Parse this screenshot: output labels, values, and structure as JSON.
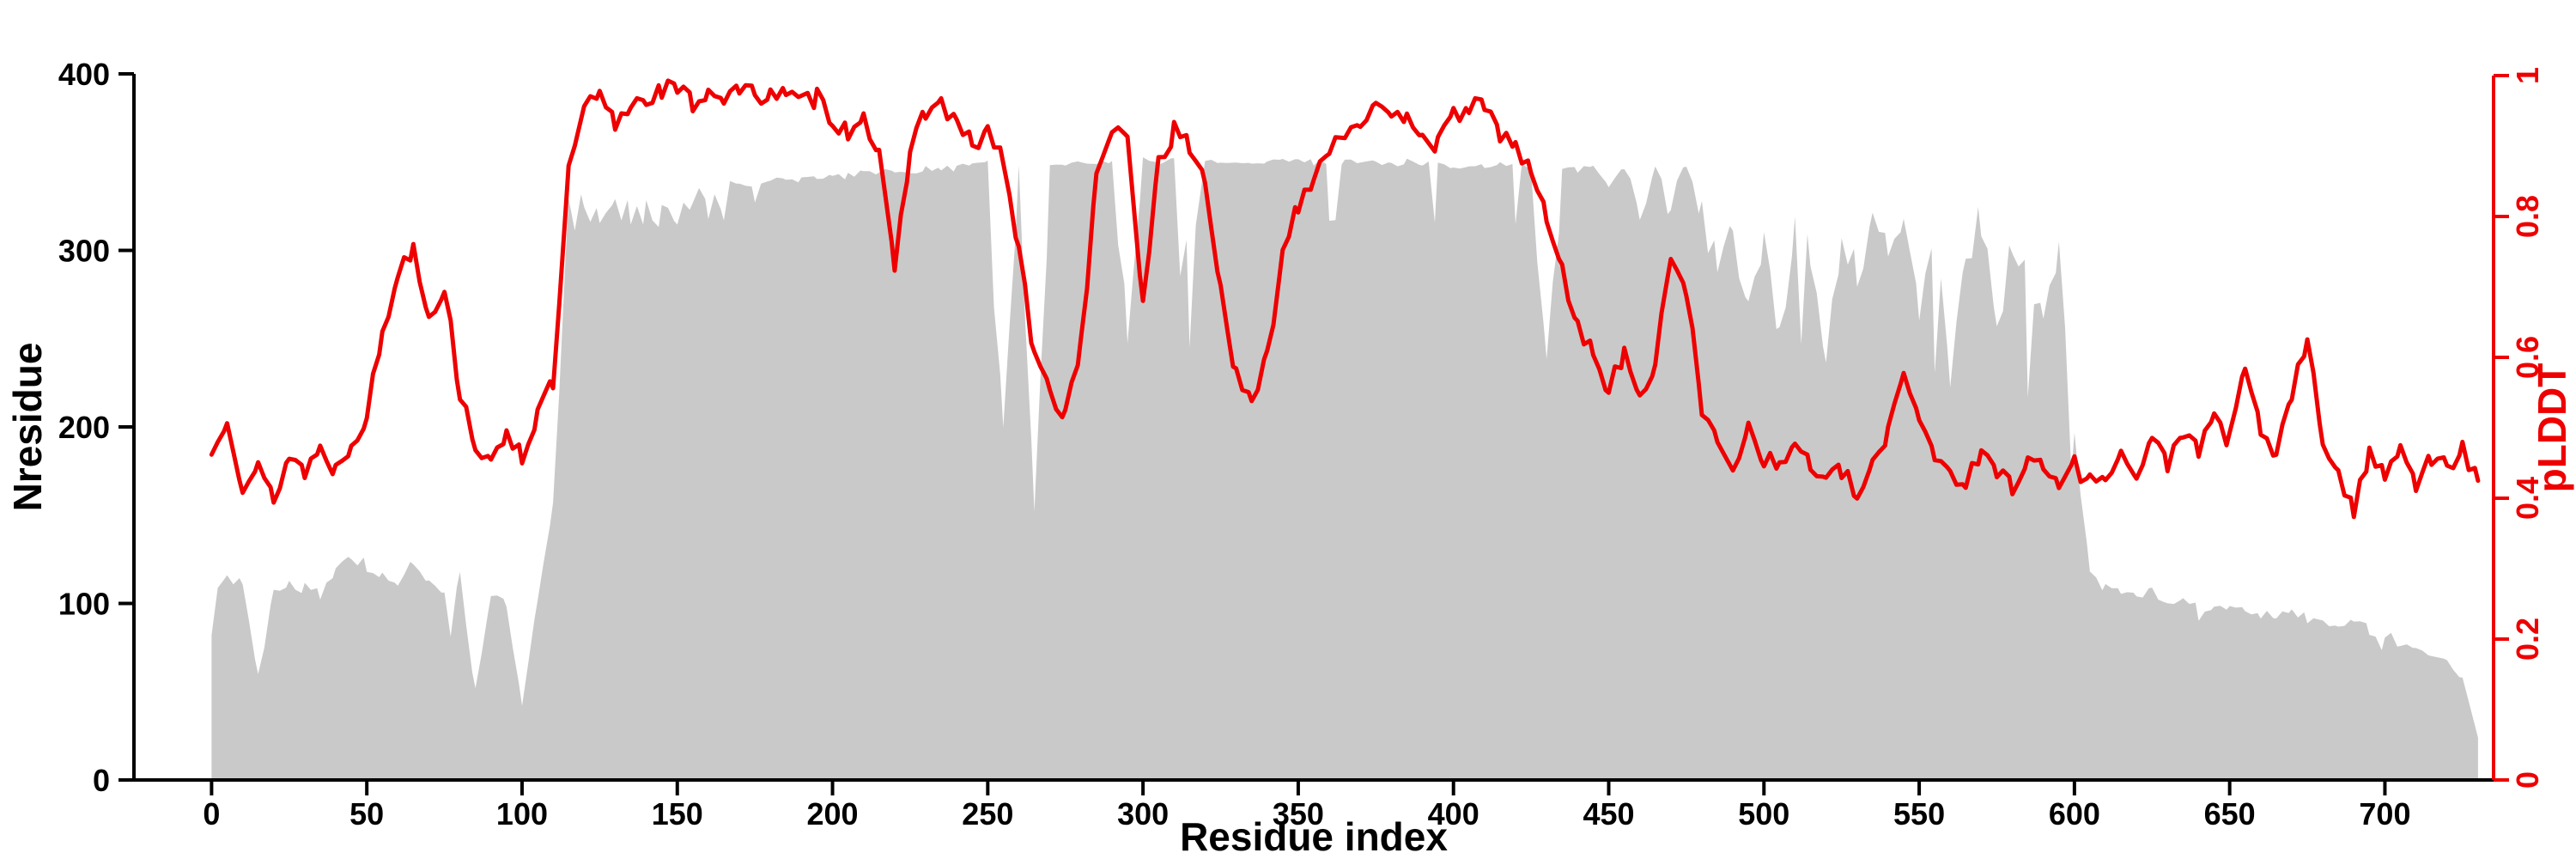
{
  "chart_data": {
    "type": "area",
    "description": "Dual-axis plot: gray area (Nresidue, left axis) and red line (pLDDT, right axis) versus residue index",
    "title": "",
    "xlabel": "Residue index",
    "ylabel_left": "Nresidue",
    "ylabel_right": "pLDDT",
    "x_range": [
      -25,
      735
    ],
    "y_left_range": [
      0,
      400
    ],
    "y_right_range": [
      0,
      1
    ],
    "grid": false,
    "legend": "none",
    "xticks": [
      0,
      50,
      100,
      150,
      200,
      250,
      300,
      350,
      400,
      450,
      500,
      550,
      600,
      650,
      700
    ],
    "yticks_left": [
      0,
      100,
      200,
      300,
      400
    ],
    "yticks_right": [
      0,
      0.2,
      0.4,
      0.6,
      0.8,
      1
    ],
    "colors": {
      "area": "#c9c9c9",
      "line": "#ee0000",
      "axis_left": "#000000",
      "axis_bottom": "#000000",
      "axis_right": "#ee0000",
      "background": "#ffffff"
    },
    "x": [
      0,
      5,
      10,
      15,
      20,
      25,
      30,
      35,
      40,
      45,
      50,
      55,
      60,
      65,
      70,
      75,
      80,
      85,
      90,
      95,
      100,
      105,
      110,
      115,
      120,
      125,
      130,
      135,
      140,
      145,
      150,
      155,
      160,
      165,
      170,
      175,
      180,
      185,
      190,
      195,
      200,
      205,
      210,
      215,
      220,
      225,
      230,
      235,
      240,
      245,
      250,
      255,
      260,
      265,
      270,
      275,
      280,
      285,
      290,
      295,
      300,
      305,
      310,
      315,
      320,
      325,
      330,
      335,
      340,
      345,
      350,
      355,
      360,
      365,
      370,
      375,
      380,
      385,
      390,
      395,
      400,
      405,
      410,
      415,
      420,
      425,
      430,
      435,
      440,
      445,
      450,
      455,
      460,
      465,
      470,
      475,
      480,
      485,
      490,
      495,
      500,
      505,
      510,
      515,
      520,
      525,
      530,
      535,
      540,
      545,
      550,
      555,
      560,
      565,
      570,
      575,
      580,
      585,
      590,
      595,
      600,
      605,
      610,
      615,
      620,
      625,
      630,
      635,
      640,
      645,
      650,
      655,
      660,
      665,
      670,
      675,
      680,
      685,
      690,
      695,
      700,
      705,
      710,
      715,
      720,
      725,
      730
    ],
    "series": [
      {
        "name": "Nresidue",
        "render": "area",
        "axis": "left",
        "values": [
          112,
          118,
          115,
          60,
          110,
          118,
          112,
          108,
          126,
          128,
          126,
          122,
          118,
          125,
          120,
          108,
          118,
          52,
          112,
          104,
          42,
          108,
          160,
          330,
          334,
          332,
          336,
          334,
          337,
          336,
          338,
          340,
          338,
          340,
          341,
          340,
          342,
          343,
          342,
          344,
          345,
          344,
          346,
          346,
          347,
          346,
          348,
          348,
          349,
          350,
          351,
          210,
          352,
          155,
          352,
          351,
          352,
          352,
          353,
          265,
          353,
          352,
          353,
          300,
          353,
          352,
          353,
          352,
          353,
          352,
          353,
          352,
          352,
          353,
          352,
          352,
          351,
          352,
          350,
          351,
          350,
          351,
          350,
          351,
          350,
          348,
          255,
          350,
          348,
          351,
          340,
          350,
          328,
          348,
          338,
          350,
          332,
          300,
          322,
          278,
          312,
          258,
          330,
          308,
          248,
          318,
          298,
          330,
          308,
          340,
          278,
          318,
          238,
          308,
          330,
          258,
          318,
          298,
          275,
          308,
          205,
          122,
          112,
          108,
          106,
          112,
          105,
          108,
          102,
          100,
          104,
          98,
          100,
          96,
          98,
          95,
          96,
          90,
          92,
          88,
          86,
          80,
          78,
          75,
          70,
          58,
          24
        ]
      },
      {
        "name": "pLDDT",
        "render": "line",
        "axis": "right",
        "values": [
          0.46,
          0.52,
          0.42,
          0.44,
          0.4,
          0.46,
          0.44,
          0.47,
          0.44,
          0.48,
          0.52,
          0.63,
          0.72,
          0.76,
          0.66,
          0.7,
          0.55,
          0.48,
          0.44,
          0.5,
          0.46,
          0.52,
          0.56,
          0.86,
          0.95,
          0.97,
          0.93,
          0.96,
          0.97,
          0.98,
          0.98,
          0.96,
          0.98,
          0.97,
          0.98,
          0.97,
          0.98,
          0.97,
          0.96,
          0.97,
          0.94,
          0.92,
          0.95,
          0.88,
          0.72,
          0.9,
          0.95,
          0.96,
          0.93,
          0.9,
          0.92,
          0.88,
          0.75,
          0.6,
          0.55,
          0.52,
          0.62,
          0.85,
          0.93,
          0.9,
          0.68,
          0.88,
          0.92,
          0.9,
          0.85,
          0.7,
          0.57,
          0.53,
          0.6,
          0.75,
          0.82,
          0.86,
          0.9,
          0.92,
          0.94,
          0.95,
          0.93,
          0.95,
          0.92,
          0.9,
          0.94,
          0.96,
          0.95,
          0.92,
          0.9,
          0.86,
          0.8,
          0.72,
          0.65,
          0.6,
          0.56,
          0.6,
          0.55,
          0.58,
          0.75,
          0.7,
          0.52,
          0.48,
          0.45,
          0.5,
          0.46,
          0.44,
          0.48,
          0.45,
          0.42,
          0.44,
          0.4,
          0.44,
          0.5,
          0.58,
          0.52,
          0.46,
          0.44,
          0.42,
          0.46,
          0.44,
          0.42,
          0.46,
          0.44,
          0.42,
          0.45,
          0.42,
          0.44,
          0.46,
          0.43,
          0.48,
          0.45,
          0.5,
          0.46,
          0.52,
          0.48,
          0.58,
          0.5,
          0.46,
          0.55,
          0.62,
          0.48,
          0.44,
          0.38,
          0.46,
          0.44,
          0.48,
          0.42,
          0.46,
          0.44,
          0.47,
          0.42
        ]
      }
    ]
  }
}
